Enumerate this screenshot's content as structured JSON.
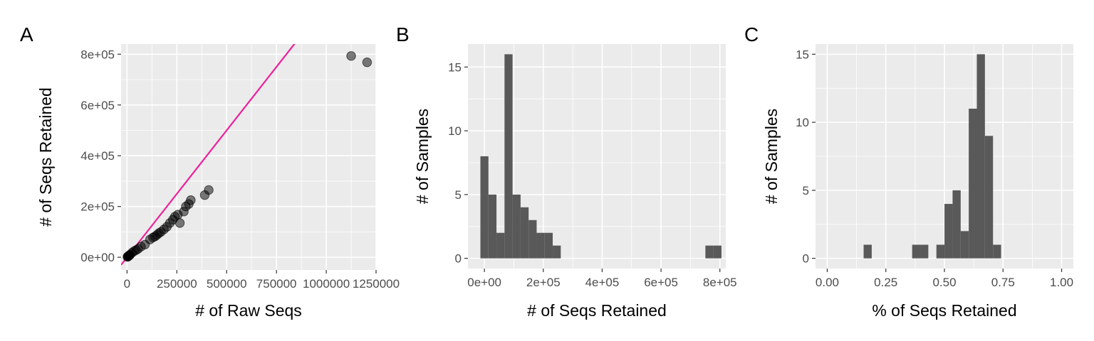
{
  "colors": {
    "panel_background": "#ebebeb",
    "grid": "#ffffff",
    "bar_fill": "#595959",
    "point_fill": "#000000",
    "identity_line": "#ee1f9a"
  },
  "chart_data": [
    {
      "type": "scatter",
      "panel_label": "A",
      "xlabel": "# of Raw Seqs",
      "ylabel": "# of Seqs Retained",
      "xlim": [
        -30000,
        1250000
      ],
      "ylim": [
        -50000,
        840000
      ],
      "xticks": [
        0,
        250000,
        500000,
        750000,
        1000000,
        1250000
      ],
      "xtick_labels": [
        "0",
        "250000",
        "500000",
        "750000",
        "1000000",
        "1250000"
      ],
      "yticks": [
        0,
        200000,
        400000,
        600000,
        800000
      ],
      "ytick_labels": [
        "0e+00",
        "2e+05",
        "4e+05",
        "6e+05",
        "8e+05"
      ],
      "reference_line": {
        "slope": 1,
        "intercept": 0,
        "color": "#ee1f9a"
      },
      "points": [
        {
          "x": 2000,
          "y": 1500
        },
        {
          "x": 4000,
          "y": 3000
        },
        {
          "x": 6000,
          "y": 4000
        },
        {
          "x": 8000,
          "y": 5000
        },
        {
          "x": 10000,
          "y": 7000
        },
        {
          "x": 12000,
          "y": 8000
        },
        {
          "x": 15000,
          "y": 10000
        },
        {
          "x": 25000,
          "y": 18000
        },
        {
          "x": 35000,
          "y": 24000
        },
        {
          "x": 45000,
          "y": 28000
        },
        {
          "x": 55000,
          "y": 33000
        },
        {
          "x": 70000,
          "y": 42000
        },
        {
          "x": 90000,
          "y": 50000
        },
        {
          "x": 115000,
          "y": 70000
        },
        {
          "x": 130000,
          "y": 78000
        },
        {
          "x": 140000,
          "y": 82000
        },
        {
          "x": 150000,
          "y": 88000
        },
        {
          "x": 160000,
          "y": 95000
        },
        {
          "x": 170000,
          "y": 100000
        },
        {
          "x": 185000,
          "y": 110000
        },
        {
          "x": 200000,
          "y": 120000
        },
        {
          "x": 215000,
          "y": 135000
        },
        {
          "x": 230000,
          "y": 148000
        },
        {
          "x": 240000,
          "y": 160000
        },
        {
          "x": 255000,
          "y": 168000
        },
        {
          "x": 265000,
          "y": 135000
        },
        {
          "x": 285000,
          "y": 180000
        },
        {
          "x": 295000,
          "y": 200000
        },
        {
          "x": 310000,
          "y": 210000
        },
        {
          "x": 320000,
          "y": 225000
        },
        {
          "x": 390000,
          "y": 245000
        },
        {
          "x": 410000,
          "y": 265000
        },
        {
          "x": 1125000,
          "y": 793000
        },
        {
          "x": 1205000,
          "y": 768000
        }
      ]
    },
    {
      "type": "bar",
      "panel_label": "B",
      "xlabel": "# of Seqs Retained",
      "ylabel": "# of Samples",
      "xlim": [
        -56000,
        820000
      ],
      "ylim": [
        -0.8,
        16.8
      ],
      "xticks": [
        0,
        200000,
        400000,
        600000,
        800000
      ],
      "xtick_labels": [
        "0e+00",
        "2e+05",
        "4e+05",
        "6e+05",
        "8e+05"
      ],
      "yticks": [
        0,
        5,
        10,
        15
      ],
      "ytick_labels": [
        "0",
        "5",
        "10",
        "15"
      ],
      "bin_width": 27300,
      "first_bin_start": -13650,
      "counts": [
        8,
        5,
        2,
        16,
        5,
        4,
        3,
        2,
        2,
        1,
        0,
        0,
        0,
        0,
        0,
        0,
        0,
        0,
        0,
        0,
        0,
        0,
        0,
        0,
        0,
        0,
        0,
        0,
        1,
        1
      ]
    },
    {
      "type": "bar",
      "panel_label": "C",
      "xlabel": "% of Seqs Retained",
      "ylabel": "# of Samples",
      "xlim": [
        -0.05,
        1.05
      ],
      "ylim": [
        -0.75,
        15.75
      ],
      "xticks": [
        0,
        0.25,
        0.5,
        0.75,
        1
      ],
      "xtick_labels": [
        "0.00",
        "0.25",
        "0.50",
        "0.75",
        "1.00"
      ],
      "yticks": [
        0,
        5,
        10,
        15
      ],
      "ytick_labels": [
        "0",
        "5",
        "10",
        "15"
      ],
      "bin_width": 0.0345,
      "first_bin_start": -0.01725,
      "counts": [
        0,
        0,
        0,
        0,
        0,
        1,
        0,
        0,
        0,
        0,
        0,
        1,
        1,
        0,
        1,
        4,
        5,
        2,
        11,
        15,
        9,
        1,
        0,
        0,
        0,
        0,
        0,
        0,
        0,
        0
      ]
    }
  ]
}
